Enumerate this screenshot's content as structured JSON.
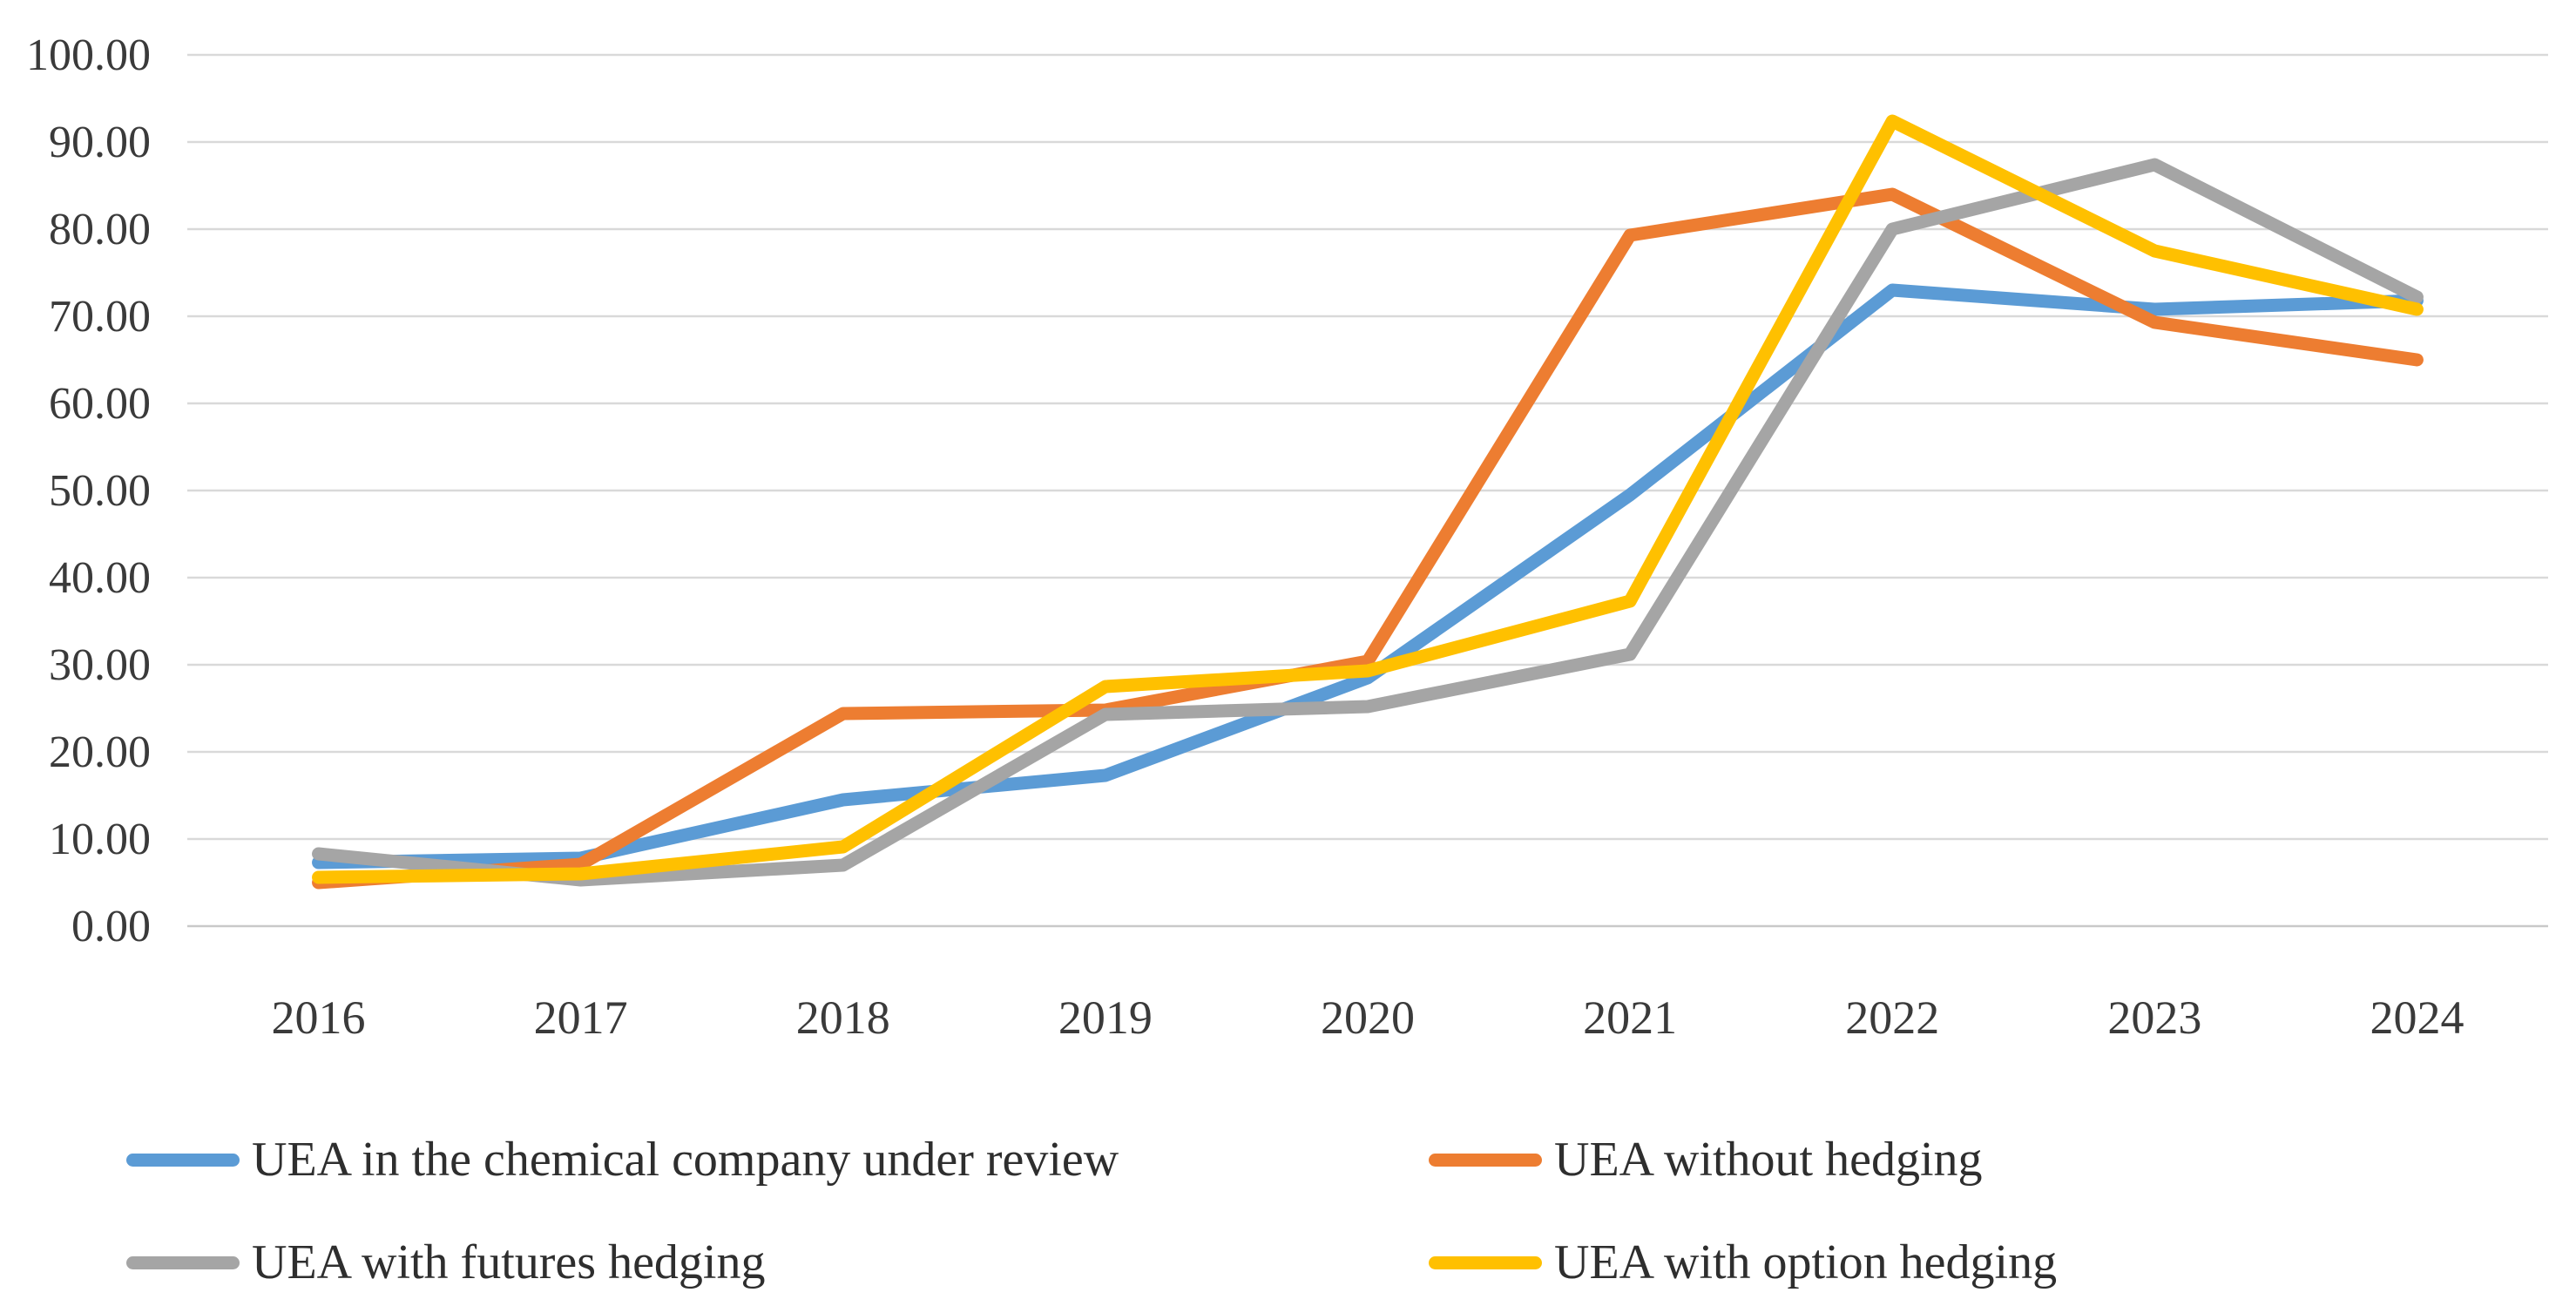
{
  "figure": {
    "background": "#ffffff"
  },
  "chart_data": {
    "type": "line",
    "title": "",
    "xlabel": "",
    "ylabel": "",
    "categories": [
      "2016",
      "2017",
      "2018",
      "2019",
      "2020",
      "2021",
      "2022",
      "2023",
      "2024"
    ],
    "series": [
      {
        "name": "UEA in the chemical company under review",
        "color": "#5B9BD5",
        "values": [
          7.3,
          7.8,
          14.5,
          17.3,
          28.5,
          49.5,
          73.0,
          70.8,
          71.8
        ]
      },
      {
        "name": "UEA without hedging",
        "color": "#ED7D31",
        "values": [
          5.0,
          7.1,
          24.4,
          24.8,
          30.4,
          79.3,
          84.0,
          69.3,
          65.0
        ]
      },
      {
        "name": "UEA with futures hedging",
        "color": "#A5A5A5",
        "values": [
          8.3,
          5.3,
          7.0,
          24.3,
          25.2,
          31.2,
          80.0,
          87.4,
          72.2
        ]
      },
      {
        "name": "UEA with option hedging",
        "color": "#FFC000",
        "values": [
          5.6,
          6.0,
          9.1,
          27.5,
          29.3,
          37.3,
          92.4,
          77.5,
          70.8
        ]
      }
    ],
    "ylim": [
      0,
      100
    ],
    "y_ticks": [
      "0.00",
      "10.00",
      "20.00",
      "30.00",
      "40.00",
      "50.00",
      "60.00",
      "70.00",
      "80.00",
      "90.00",
      "100.00"
    ],
    "grid": "horizontal",
    "gridline_color": "#D9D9D9",
    "baseline_color": "#C9C9C9",
    "axis_text_color": "#3a3a3a",
    "legend": {
      "position": "bottom-left",
      "columns": 2,
      "row1": [
        "UEA in the chemical company under review",
        "UEA without hedging"
      ],
      "row2": [
        "UEA with futures hedging",
        "UEA with option hedging"
      ]
    }
  }
}
